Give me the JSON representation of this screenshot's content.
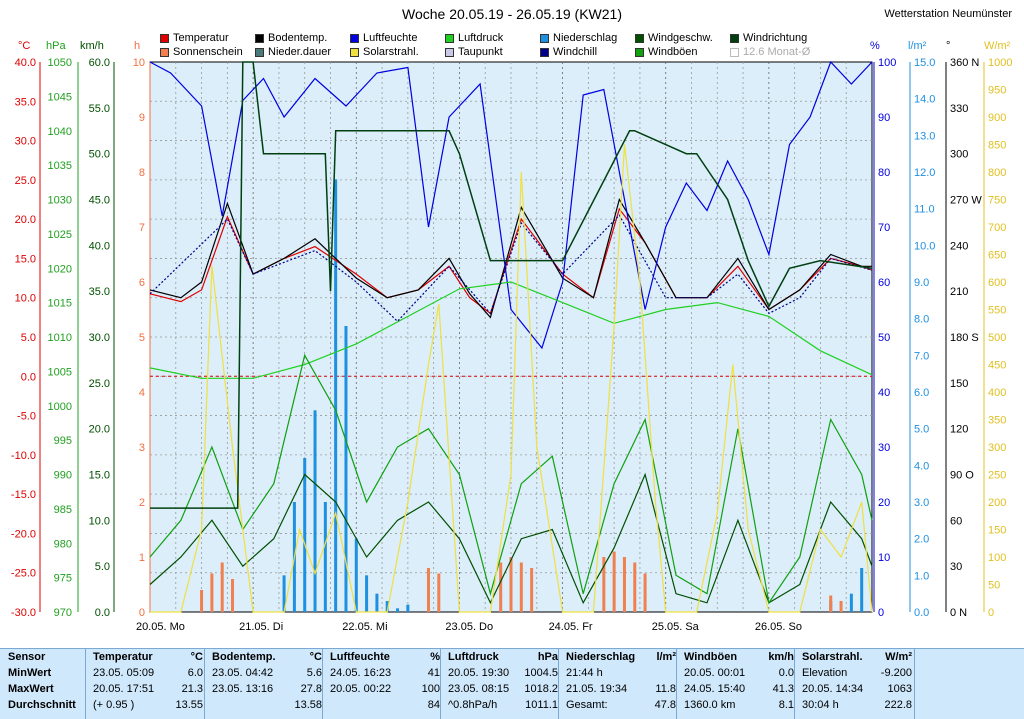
{
  "header": {
    "title": "Woche 20.05.19 - 26.05.19 (KW21)",
    "station": "Wetterstation Neumünster"
  },
  "units": {
    "temp": "°C",
    "pressure": "hPa",
    "wind": "km/h",
    "sun": "h",
    "humidity": "%",
    "rain": "l/m²",
    "dir": "°",
    "solar": "W/m²"
  },
  "legend": [
    {
      "label": "Temperatur",
      "color": "#e00000"
    },
    {
      "label": "Sonnenschein",
      "color": "#f08050"
    },
    {
      "label": "Bodentemp.",
      "color": "#000000"
    },
    {
      "label": "Nieder.dauer",
      "color": "#4a7a7a"
    },
    {
      "label": "Luftfeuchte",
      "color": "#0000e0"
    },
    {
      "label": "Solarstrahl.",
      "color": "#f0e040"
    },
    {
      "label": "Luftdruck",
      "color": "#20d020"
    },
    {
      "label": "Taupunkt",
      "color": "#c8c8e8"
    },
    {
      "label": "Niederschlag",
      "color": "#1e90e0"
    },
    {
      "label": "Windchill",
      "color": "#00008b"
    },
    {
      "label": "Windgeschw.",
      "color": "#005000"
    },
    {
      "label": "Windböen",
      "color": "#10a010"
    },
    {
      "label": "Windrichtung",
      "color": "#004010"
    },
    {
      "label": "12.6 Monat-Ø",
      "color": "#ffffff",
      "dim": true
    }
  ],
  "colors": {
    "plot_bg": "#dbeefa",
    "temp_axis": "#e00000",
    "pressure_axis": "#20a020",
    "wind_axis": "#005000",
    "sun_axis": "#f07040",
    "humidity_axis": "#0000e0",
    "rain_axis": "#1e90e0",
    "dir_axis": "#000000",
    "solar_axis": "#e0c020"
  },
  "chart_data": {
    "type": "line",
    "days": [
      "20.05. Mo",
      "21.05. Di",
      "22.05. Mi",
      "23.05. Do",
      "24.05. Fr",
      "25.05. Sa",
      "26.05. So"
    ],
    "axes": {
      "temp_c": {
        "range": [
          -30,
          40
        ],
        "ticks": [
          "40.0",
          "35.0",
          "30.0",
          "25.0",
          "20.0",
          "15.0",
          "10.0",
          "5.0",
          "0.0",
          "-5.0",
          "-10.0",
          "-15.0",
          "-20.0",
          "-25.0",
          "-30.0"
        ]
      },
      "pressure_hpa": {
        "range": [
          970,
          1050
        ],
        "ticks": [
          "1050",
          "1045",
          "1040",
          "1035",
          "1030",
          "1025",
          "1020",
          "1015",
          "1010",
          "1005",
          "1000",
          "995",
          "990",
          "985",
          "980",
          "975",
          "970"
        ]
      },
      "wind_kmh": {
        "range": [
          0,
          60
        ],
        "ticks": [
          "60.0",
          "55.0",
          "50.0",
          "45.0",
          "40.0",
          "35.0",
          "30.0",
          "25.0",
          "20.0",
          "15.0",
          "10.0",
          "5.0",
          "0.0"
        ]
      },
      "sun_h": {
        "range": [
          0,
          10
        ],
        "ticks": [
          "10",
          "9",
          "8",
          "7",
          "6",
          "5",
          "4",
          "3",
          "2",
          "1",
          "0"
        ]
      },
      "humidity_pct": {
        "range": [
          0,
          100
        ],
        "ticks": [
          "100",
          "90",
          "80",
          "70",
          "60",
          "50",
          "40",
          "30",
          "20",
          "10",
          "0"
        ]
      },
      "rain_lm2": {
        "range": [
          0,
          15
        ],
        "ticks": [
          "15.0",
          "14.0",
          "13.0",
          "12.0",
          "11.0",
          "10.0",
          "9.0",
          "8.0",
          "7.0",
          "6.0",
          "5.0",
          "4.0",
          "3.0",
          "2.0",
          "1.0",
          "0.0"
        ]
      },
      "dir_deg": {
        "range": [
          0,
          360
        ],
        "ticks": [
          "360 N",
          "330",
          "300",
          "270 W",
          "240",
          "210",
          "180 S",
          "150",
          "120",
          "90 O",
          "60",
          "30",
          "0 N"
        ]
      },
      "solar_wm2": {
        "range": [
          0,
          1000
        ],
        "ticks": [
          "1000",
          "950",
          "900",
          "850",
          "800",
          "750",
          "700",
          "650",
          "600",
          "550",
          "500",
          "450",
          "400",
          "350",
          "300",
          "250",
          "200",
          "150",
          "100",
          "50",
          "0"
        ]
      }
    },
    "series": [
      {
        "name": "Temperatur",
        "unit": "°C",
        "x": [
          0,
          0.3,
          0.5,
          0.75,
          1.0,
          1.3,
          1.6,
          2.0,
          2.3,
          2.6,
          2.9,
          3.1,
          3.3,
          3.6,
          4.0,
          4.3,
          4.55,
          4.8,
          5.1,
          5.4,
          5.7,
          6.0,
          6.3,
          6.6,
          6.9,
          7.0
        ],
        "values": [
          10.5,
          9.5,
          11,
          20.3,
          13,
          15,
          16.5,
          13,
          10,
          11,
          14,
          10,
          8,
          20,
          13,
          10,
          21.3,
          17,
          10,
          10,
          14,
          8.5,
          11,
          15,
          14,
          13.5
        ]
      },
      {
        "name": "Bodentemp.",
        "unit": "°C",
        "x": [
          0,
          0.3,
          0.5,
          0.75,
          1.0,
          1.3,
          1.6,
          2.0,
          2.3,
          2.6,
          2.9,
          3.1,
          3.3,
          3.6,
          4.0,
          4.3,
          4.55,
          4.8,
          5.1,
          5.4,
          5.7,
          6.0,
          6.3,
          6.6,
          6.9,
          7.0
        ],
        "values": [
          11,
          10,
          12,
          22,
          13,
          15,
          17.5,
          12.5,
          10,
          11,
          15,
          10.5,
          7.5,
          21.5,
          12.5,
          10,
          22.5,
          17,
          10,
          10,
          15,
          8.5,
          11,
          15.5,
          14,
          14
        ]
      },
      {
        "name": "Luftfeuchte",
        "unit": "%",
        "x": [
          0,
          0.2,
          0.5,
          0.7,
          0.9,
          1.1,
          1.3,
          1.6,
          1.9,
          2.2,
          2.5,
          2.7,
          2.9,
          3.2,
          3.5,
          3.8,
          4.0,
          4.2,
          4.4,
          4.6,
          4.8,
          5.0,
          5.2,
          5.4,
          5.6,
          5.8,
          6.0,
          6.2,
          6.4,
          6.6,
          6.8,
          7.0
        ],
        "values": [
          100,
          98,
          92,
          72,
          93,
          97,
          90,
          97,
          92,
          98,
          99,
          70,
          90,
          96,
          55,
          48,
          60,
          94,
          95,
          75,
          55,
          70,
          78,
          73,
          82,
          75,
          65,
          85,
          90,
          100,
          96,
          100
        ]
      },
      {
        "name": "Luftdruck",
        "unit": "hPa",
        "x": [
          0,
          0.5,
          1.0,
          1.5,
          2.0,
          2.5,
          3.0,
          3.5,
          4.0,
          4.5,
          5.0,
          5.5,
          6.0,
          6.5,
          7.0
        ],
        "values": [
          1005.5,
          1004,
          1004,
          1006,
          1009,
          1013,
          1017,
          1018,
          1015,
          1012,
          1014,
          1015,
          1013,
          1008,
          1004.5
        ]
      },
      {
        "name": "Windchill",
        "unit": "°C",
        "x": [
          0,
          0.75,
          1.0,
          1.6,
          2.0,
          2.4,
          2.9,
          3.3,
          3.6,
          4.0,
          4.55,
          5.0,
          5.4,
          5.7,
          6.0,
          6.3,
          6.6,
          7.0
        ],
        "values": [
          10.5,
          20,
          13,
          16,
          12,
          7,
          14,
          8,
          19.5,
          13,
          20.5,
          10,
          10,
          13,
          8,
          10,
          15,
          13.5
        ]
      },
      {
        "name": "Windgeschw.",
        "unit": "km/h",
        "x": [
          0,
          0.3,
          0.6,
          0.9,
          1.2,
          1.5,
          1.8,
          2.1,
          2.4,
          2.7,
          3.0,
          3.3,
          3.6,
          3.9,
          4.2,
          4.5,
          4.8,
          5.1,
          5.4,
          5.7,
          6.0,
          6.3,
          6.6,
          6.9,
          7.0
        ],
        "values": [
          3,
          6,
          10,
          5,
          8,
          15,
          12,
          6,
          10,
          12,
          8,
          1,
          8,
          9,
          1,
          7,
          15,
          2,
          1,
          10,
          1,
          3,
          12,
          8,
          5
        ]
      },
      {
        "name": "Windböen",
        "unit": "km/h",
        "x": [
          0,
          0.3,
          0.6,
          0.9,
          1.2,
          1.5,
          1.8,
          2.1,
          2.4,
          2.7,
          3.0,
          3.3,
          3.6,
          3.9,
          4.2,
          4.5,
          4.8,
          5.1,
          5.4,
          5.7,
          6.0,
          6.3,
          6.6,
          6.9,
          7.0
        ],
        "values": [
          6,
          10,
          18,
          9,
          14,
          28,
          22,
          12,
          18,
          20,
          15,
          2,
          14,
          17,
          2,
          14,
          21,
          4,
          2,
          20,
          1,
          6,
          21,
          15,
          10
        ]
      },
      {
        "name": "Solarstrahl.",
        "unit": "W/m²",
        "x": [
          0,
          0.3,
          0.5,
          0.6,
          0.8,
          1.0,
          1.3,
          1.45,
          1.6,
          1.8,
          2.0,
          2.3,
          2.5,
          2.7,
          2.8,
          3.0,
          3.3,
          3.5,
          3.6,
          3.75,
          3.9,
          4.0,
          4.3,
          4.5,
          4.6,
          4.75,
          4.9,
          5.0,
          5.3,
          5.5,
          5.65,
          5.8,
          6.0,
          6.3,
          6.5,
          6.7,
          6.9,
          7.0
        ],
        "values": [
          0,
          0,
          150,
          630,
          300,
          0,
          0,
          150,
          70,
          180,
          0,
          0,
          200,
          450,
          560,
          0,
          0,
          250,
          800,
          300,
          120,
          0,
          0,
          520,
          850,
          600,
          200,
          0,
          0,
          180,
          450,
          150,
          0,
          0,
          150,
          100,
          200,
          0
        ]
      },
      {
        "name": "Windrichtung",
        "unit": "°",
        "x": [
          0,
          0.85,
          0.9,
          1.0,
          1.1,
          1.7,
          1.75,
          1.8,
          2.0,
          2.5,
          2.9,
          3.0,
          3.3,
          4.0,
          4.65,
          4.7,
          5.2,
          5.3,
          5.6,
          5.8,
          6.0,
          6.2,
          6.5,
          7.0
        ],
        "values": [
          68,
          68,
          360,
          360,
          300,
          300,
          210,
          315,
          315,
          315,
          315,
          300,
          230,
          230,
          315,
          315,
          300,
          300,
          270,
          230,
          200,
          225,
          230,
          225
        ]
      },
      {
        "name": "Niederschlag",
        "unit": "l/m²",
        "x": [
          1.3,
          1.4,
          1.5,
          1.6,
          1.7,
          1.8,
          1.9,
          2.0,
          2.1,
          2.2,
          2.3,
          2.4,
          2.5,
          6.6,
          6.8,
          6.9
        ],
        "values": [
          1,
          3,
          4.2,
          5.5,
          3,
          11.8,
          7.8,
          2,
          1,
          0.5,
          0.3,
          0.1,
          0.2,
          0.3,
          0.5,
          1.2
        ]
      },
      {
        "name": "Sonnenschein",
        "unit": "h",
        "x": [
          0.5,
          0.6,
          0.7,
          0.8,
          2.7,
          2.8,
          3.4,
          3.5,
          3.6,
          3.7,
          4.4,
          4.5,
          4.6,
          4.7,
          4.8,
          6.6,
          6.7
        ],
        "values": [
          0.4,
          0.7,
          0.9,
          0.6,
          0.8,
          0.7,
          0.9,
          1.0,
          0.9,
          0.8,
          1.0,
          1.1,
          1.0,
          0.9,
          0.7,
          0.3,
          0.2
        ]
      }
    ],
    "reference_line": {
      "axis": "temp_c",
      "value": 0
    },
    "grid": true
  },
  "stats": {
    "row_labels": [
      "Sensor",
      "MinWert",
      "MaxWert",
      "Durchschnitt"
    ],
    "columns": [
      {
        "title": "Temperatur",
        "unit": "°C",
        "rows": [
          [
            "23.05.  05:09",
            "6.0"
          ],
          [
            "20.05.  17:51",
            "21.3"
          ],
          [
            "(+ 0.95 )",
            "13.55"
          ]
        ]
      },
      {
        "title": "Bodentemp.",
        "unit": "°C",
        "rows": [
          [
            "23.05.  04:42",
            "5.6"
          ],
          [
            "23.05.  13:16",
            "27.8"
          ],
          [
            "",
            "13.58"
          ]
        ]
      },
      {
        "title": "Luftfeuchte",
        "unit": "%",
        "rows": [
          [
            "24.05.  16:23",
            "41"
          ],
          [
            "20.05.  00:22",
            "100"
          ],
          [
            "",
            "84"
          ]
        ]
      },
      {
        "title": "Luftdruck",
        "unit": "hPa",
        "rows": [
          [
            "20.05.  19:30",
            "1004.5"
          ],
          [
            "23.05.  08:15",
            "1018.2"
          ],
          [
            "^0.8hPa/h",
            "1011.1"
          ]
        ]
      },
      {
        "title": "Niederschlag",
        "unit": "l/m²",
        "rows": [
          [
            "21:44 h",
            ""
          ],
          [
            "21.05.  19:34",
            "11.8"
          ],
          [
            "Gesamt:",
            "47.8"
          ]
        ]
      },
      {
        "title": "Windböen",
        "unit": "km/h",
        "rows": [
          [
            "20.05.  00:01",
            "0.0"
          ],
          [
            "24.05.  15:40",
            "41.3"
          ],
          [
            "1360.0 km",
            "8.1"
          ]
        ]
      },
      {
        "title": "Solarstrahl.",
        "unit": "W/m²",
        "rows": [
          [
            "Elevation",
            "-9.200"
          ],
          [
            "20.05.  14:34",
            "1063"
          ],
          [
            "30:04 h",
            "222.8"
          ]
        ]
      }
    ]
  }
}
